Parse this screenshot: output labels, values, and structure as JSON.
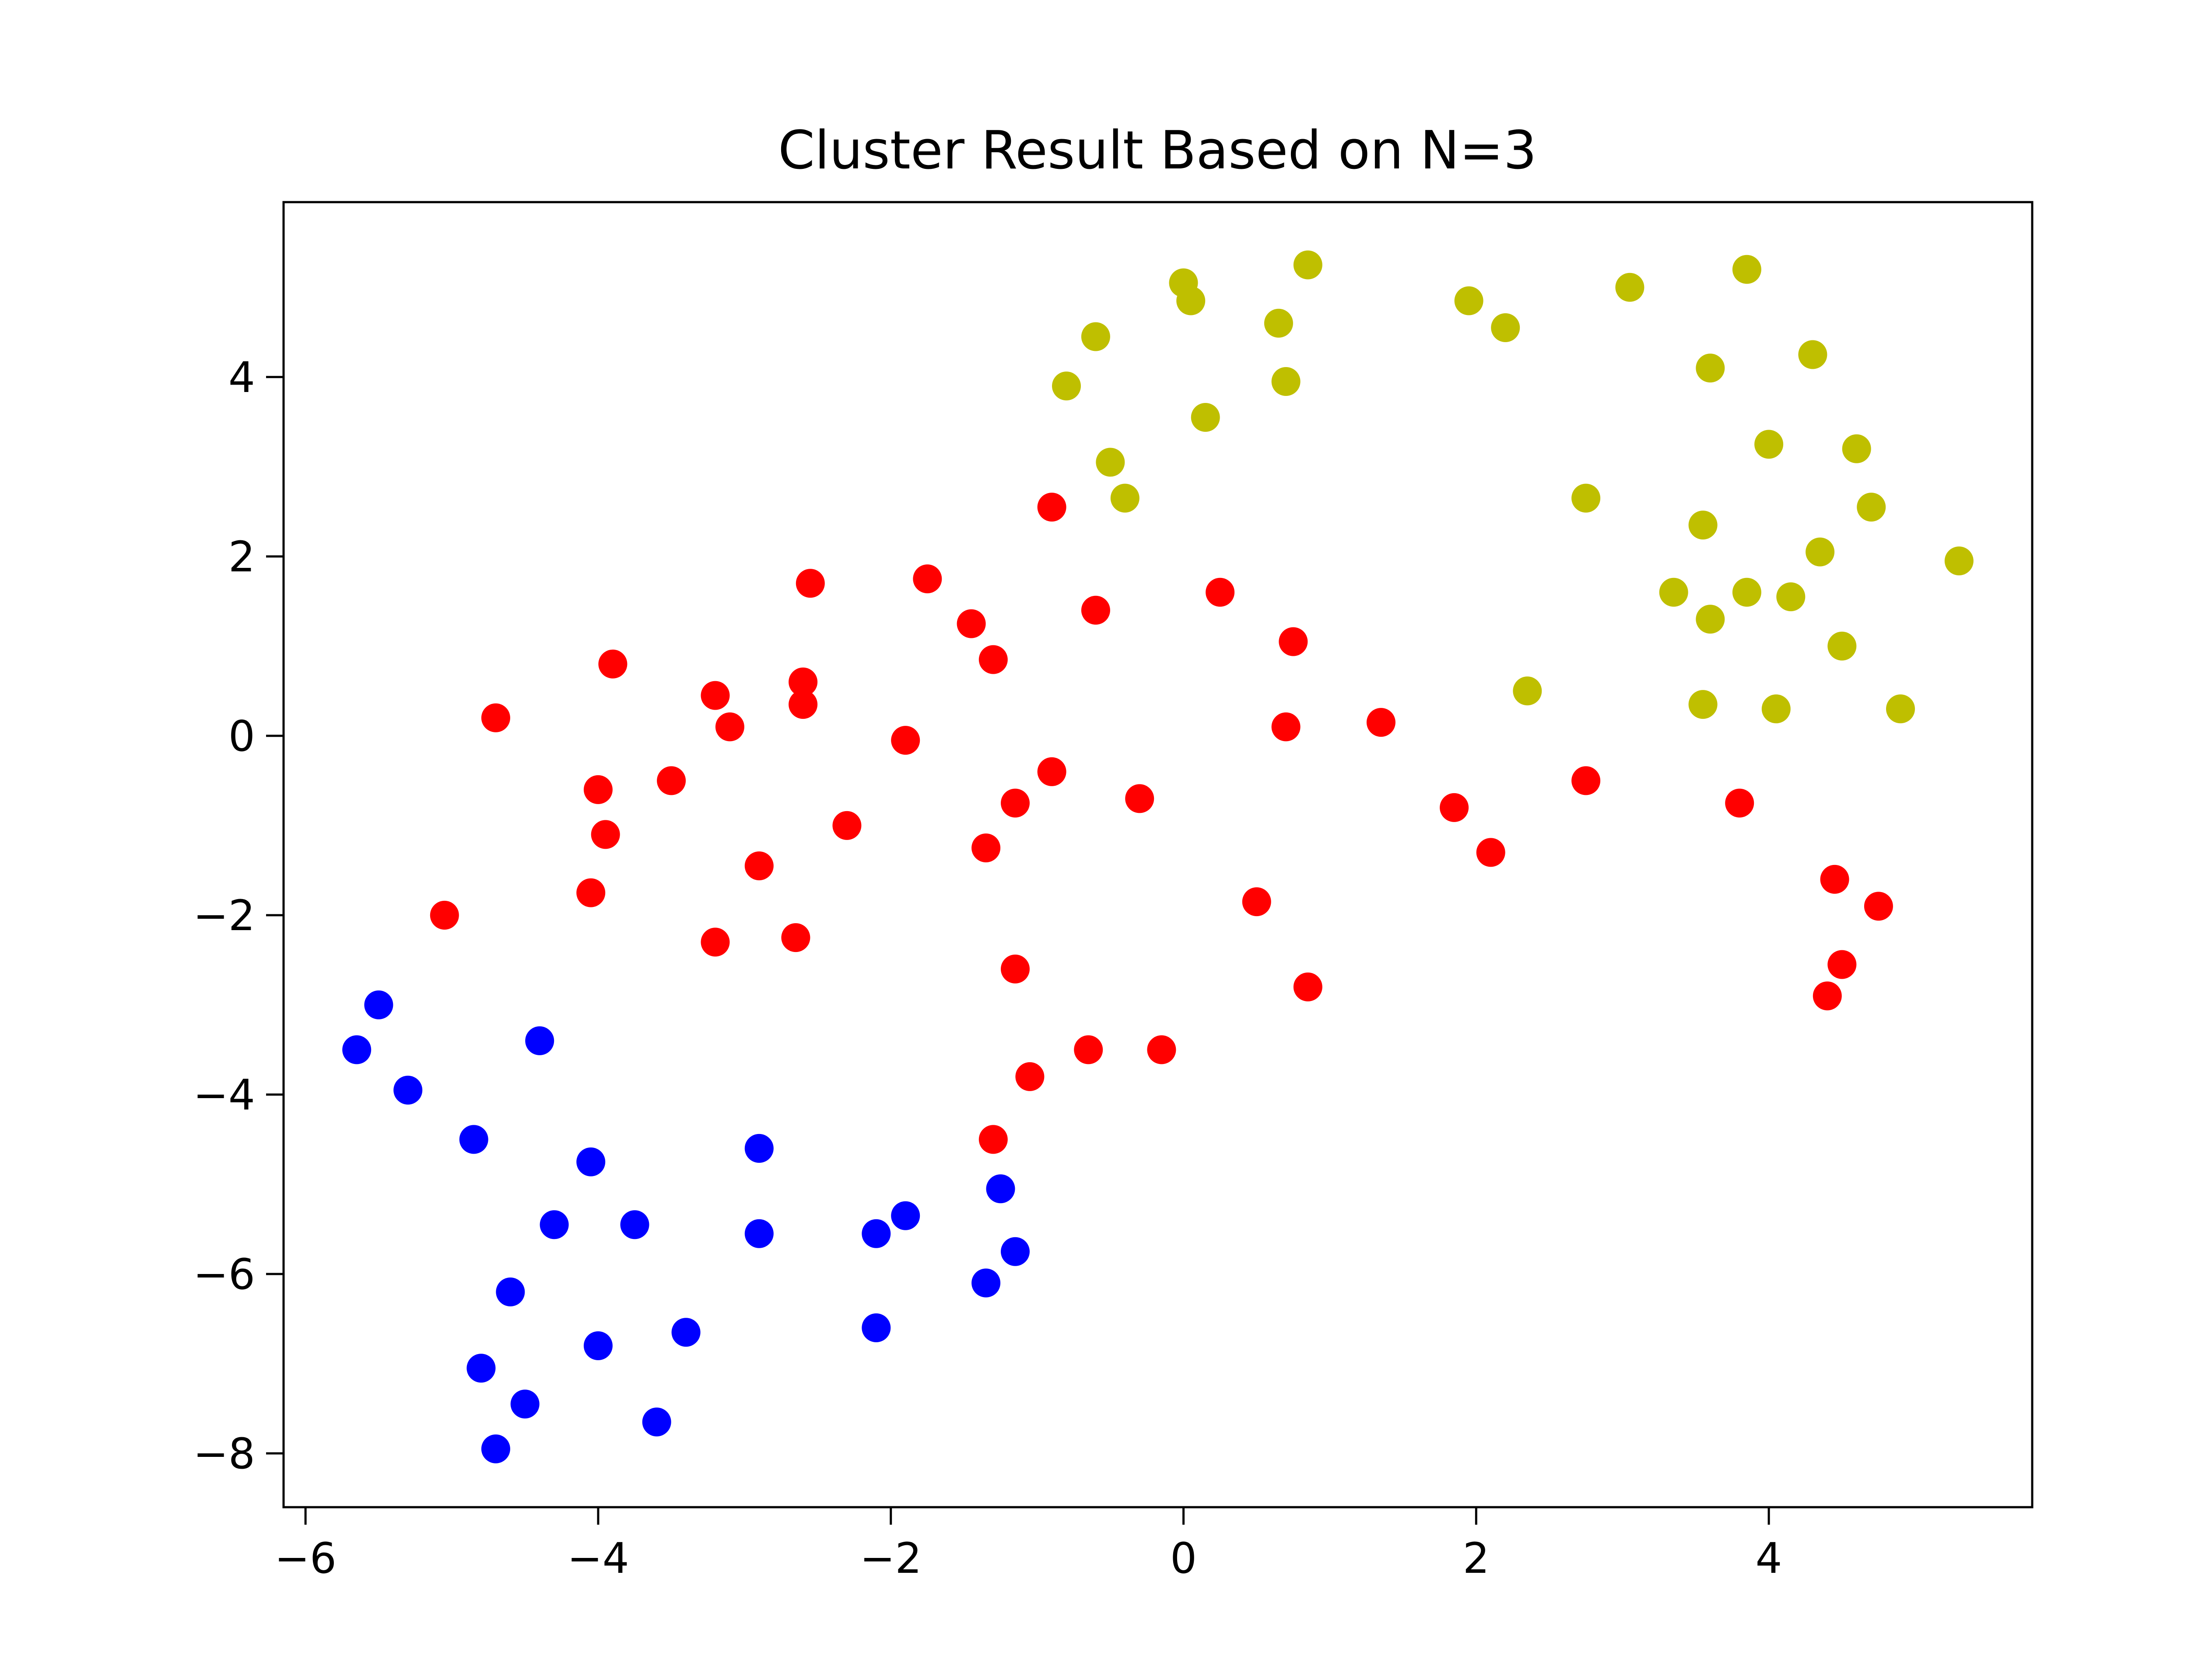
{
  "chart_data": {
    "type": "scatter",
    "title": "Cluster Result Based on N=3",
    "xlabel": "",
    "ylabel": "",
    "xlim": [
      -6.15,
      5.8
    ],
    "ylim": [
      -8.6,
      5.95
    ],
    "grid": false,
    "x_ticks": [
      {
        "value": -6,
        "label": "−6"
      },
      {
        "value": -4,
        "label": "−4"
      },
      {
        "value": -2,
        "label": "−2"
      },
      {
        "value": 0,
        "label": "0"
      },
      {
        "value": 2,
        "label": "2"
      },
      {
        "value": 4,
        "label": "4"
      }
    ],
    "y_ticks": [
      {
        "value": -8,
        "label": "−8"
      },
      {
        "value": -6,
        "label": "−6"
      },
      {
        "value": -4,
        "label": "−4"
      },
      {
        "value": -2,
        "label": "−2"
      },
      {
        "value": 0,
        "label": "0"
      },
      {
        "value": 2,
        "label": "2"
      },
      {
        "value": 4,
        "label": "4"
      }
    ],
    "series": [
      {
        "color": "#0000ff",
        "points": [
          [
            -5.5,
            -3.0
          ],
          [
            -5.65,
            -3.5
          ],
          [
            -5.3,
            -3.95
          ],
          [
            -4.4,
            -3.4
          ],
          [
            -4.85,
            -4.5
          ],
          [
            -4.05,
            -4.75
          ],
          [
            -2.9,
            -4.6
          ],
          [
            -4.3,
            -5.45
          ],
          [
            -3.75,
            -5.45
          ],
          [
            -2.9,
            -5.55
          ],
          [
            -2.1,
            -5.55
          ],
          [
            -1.9,
            -5.35
          ],
          [
            -1.25,
            -5.05
          ],
          [
            -1.15,
            -5.75
          ],
          [
            -1.35,
            -6.1
          ],
          [
            -2.1,
            -6.6
          ],
          [
            -4.6,
            -6.2
          ],
          [
            -4.0,
            -6.8
          ],
          [
            -3.4,
            -6.65
          ],
          [
            -4.8,
            -7.05
          ],
          [
            -4.5,
            -7.45
          ],
          [
            -3.6,
            -7.65
          ],
          [
            -4.7,
            -7.95
          ]
        ]
      },
      {
        "color": "#ff0000",
        "points": [
          [
            -0.9,
            2.55
          ],
          [
            -2.55,
            1.7
          ],
          [
            -1.75,
            1.75
          ],
          [
            -0.6,
            1.4
          ],
          [
            0.25,
            1.6
          ],
          [
            -1.45,
            1.25
          ],
          [
            -1.3,
            0.85
          ],
          [
            0.75,
            1.05
          ],
          [
            -3.9,
            0.8
          ],
          [
            -3.2,
            0.45
          ],
          [
            -2.6,
            0.6
          ],
          [
            -2.6,
            0.35
          ],
          [
            -3.1,
            0.1
          ],
          [
            -4.7,
            0.2
          ],
          [
            0.7,
            0.1
          ],
          [
            1.35,
            0.15
          ],
          [
            -1.9,
            -0.05
          ],
          [
            -4.0,
            -0.6
          ],
          [
            -3.5,
            -0.5
          ],
          [
            -0.9,
            -0.4
          ],
          [
            -1.15,
            -0.75
          ],
          [
            -0.3,
            -0.7
          ],
          [
            -3.95,
            -1.1
          ],
          [
            -2.3,
            -1.0
          ],
          [
            -1.35,
            -1.25
          ],
          [
            -2.9,
            -1.45
          ],
          [
            1.85,
            -0.8
          ],
          [
            2.1,
            -1.3
          ],
          [
            2.75,
            -0.5
          ],
          [
            3.8,
            -0.75
          ],
          [
            -4.05,
            -1.75
          ],
          [
            -5.05,
            -2.0
          ],
          [
            -3.2,
            -2.3
          ],
          [
            -2.65,
            -2.25
          ],
          [
            0.5,
            -1.85
          ],
          [
            4.45,
            -1.6
          ],
          [
            4.75,
            -1.9
          ],
          [
            -1.15,
            -2.6
          ],
          [
            0.85,
            -2.8
          ],
          [
            4.5,
            -2.55
          ],
          [
            4.4,
            -2.9
          ],
          [
            -0.65,
            -3.5
          ],
          [
            -0.15,
            -3.5
          ],
          [
            -1.05,
            -3.8
          ],
          [
            -1.3,
            -4.5
          ]
        ]
      },
      {
        "color": "#bfbf00",
        "points": [
          [
            0.0,
            5.05
          ],
          [
            0.05,
            4.85
          ],
          [
            0.85,
            5.25
          ],
          [
            -0.6,
            4.45
          ],
          [
            0.65,
            4.6
          ],
          [
            -0.8,
            3.9
          ],
          [
            0.7,
            3.95
          ],
          [
            0.15,
            3.55
          ],
          [
            -0.5,
            3.05
          ],
          [
            -0.4,
            2.65
          ],
          [
            1.95,
            4.85
          ],
          [
            2.2,
            4.55
          ],
          [
            3.05,
            5.0
          ],
          [
            3.85,
            5.2
          ],
          [
            3.6,
            4.1
          ],
          [
            4.3,
            4.25
          ],
          [
            4.0,
            3.25
          ],
          [
            4.6,
            3.2
          ],
          [
            2.75,
            2.65
          ],
          [
            3.55,
            2.35
          ],
          [
            4.7,
            2.55
          ],
          [
            4.35,
            2.05
          ],
          [
            5.3,
            1.95
          ],
          [
            3.35,
            1.6
          ],
          [
            3.85,
            1.6
          ],
          [
            4.15,
            1.55
          ],
          [
            3.6,
            1.3
          ],
          [
            4.5,
            1.0
          ],
          [
            2.35,
            0.5
          ],
          [
            3.55,
            0.35
          ],
          [
            4.05,
            0.3
          ],
          [
            4.9,
            0.3
          ]
        ]
      }
    ]
  }
}
